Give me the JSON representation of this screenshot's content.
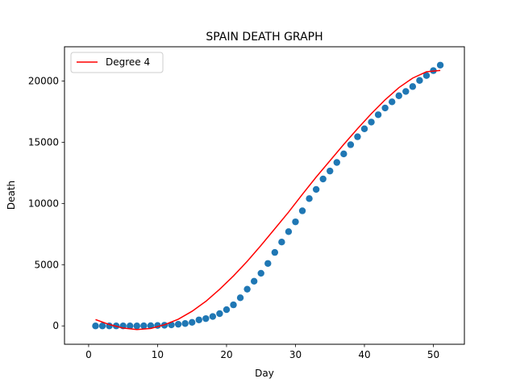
{
  "chart_data": {
    "type": "scatter",
    "title": "SPAIN DEATH GRAPH",
    "xlabel": "Day",
    "ylabel": "Death",
    "xlim": [
      -3.5,
      54.5
    ],
    "ylim": [
      -1500,
      22800
    ],
    "xticks": [
      0,
      10,
      20,
      30,
      40,
      50
    ],
    "yticks": [
      0,
      5000,
      10000,
      15000,
      20000
    ],
    "grid": false,
    "legend_position": "top-left",
    "series": [
      {
        "kind": "scatter",
        "color": "#1f77b4",
        "x": [
          1,
          2,
          3,
          4,
          5,
          6,
          7,
          8,
          9,
          10,
          11,
          12,
          13,
          14,
          15,
          16,
          17,
          18,
          19,
          20,
          21,
          22,
          23,
          24,
          25,
          26,
          27,
          28,
          29,
          30,
          31,
          32,
          33,
          34,
          35,
          36,
          37,
          38,
          39,
          40,
          41,
          42,
          43,
          44,
          45,
          46,
          47,
          48,
          49,
          50,
          51
        ],
        "values": [
          0,
          0,
          0,
          0,
          0,
          0,
          0,
          10,
          17,
          36,
          55,
          86,
          136,
          196,
          289,
          491,
          598,
          767,
          1002,
          1326,
          1720,
          2300,
          3000,
          3650,
          4300,
          5100,
          6000,
          6850,
          7700,
          8500,
          9400,
          10400,
          11150,
          12000,
          12650,
          13350,
          14050,
          14800,
          15450,
          16100,
          16650,
          17250,
          17800,
          18300,
          18800,
          19150,
          19550,
          20050,
          20450,
          20850,
          21300
        ]
      },
      {
        "kind": "line",
        "name": "Degree 4",
        "color": "#ff0000",
        "x": [
          1,
          3,
          5,
          7,
          9,
          11,
          13,
          15,
          17,
          19,
          21,
          23,
          25,
          27,
          29,
          31,
          33,
          35,
          37,
          39,
          41,
          43,
          45,
          47,
          49,
          51
        ],
        "values": [
          516,
          112,
          -178,
          -296,
          -208,
          91,
          548,
          1196,
          2004,
          2989,
          4078,
          5274,
          6573,
          7932,
          9296,
          10747,
          12154,
          13490,
          14824,
          16108,
          17332,
          18468,
          19462,
          20240,
          20758,
          20864
        ]
      }
    ]
  }
}
